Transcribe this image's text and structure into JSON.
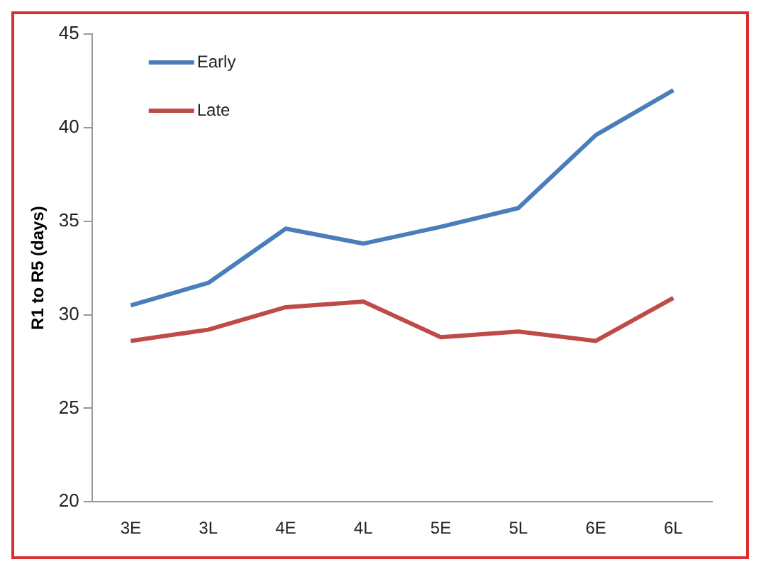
{
  "chart_data": {
    "type": "line",
    "ylabel": "R1 to R5 (days)",
    "categories": [
      "3E",
      "3L",
      "4E",
      "4L",
      "5E",
      "5L",
      "6E",
      "6L"
    ],
    "series": [
      {
        "name": "Early",
        "color": "#4a7ebb",
        "values": [
          30.5,
          31.7,
          34.6,
          33.8,
          34.7,
          35.7,
          39.6,
          42.0
        ]
      },
      {
        "name": "Late",
        "color": "#be4b48",
        "values": [
          28.6,
          29.2,
          30.4,
          30.7,
          28.8,
          29.1,
          28.6,
          30.9
        ]
      }
    ],
    "ylim": [
      20,
      45
    ],
    "yticks": [
      20,
      25,
      30,
      35,
      40,
      45
    ],
    "grid": false,
    "legend": "top left",
    "marker": "none",
    "line_style": "solid"
  }
}
